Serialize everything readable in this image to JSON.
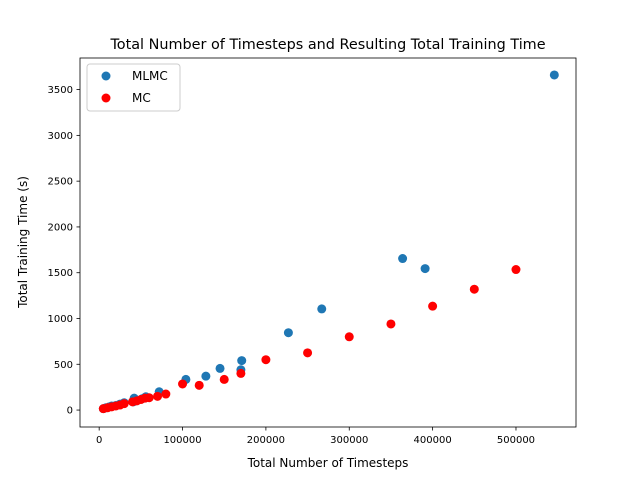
{
  "chart_data": {
    "type": "scatter",
    "title": "Total Number of Timesteps and Resulting Total Training Time",
    "xlabel": "Total Number of Timesteps",
    "ylabel": "Total Training Time (s)",
    "xlim": [
      -23000,
      572000
    ],
    "ylim": [
      -185,
      3845
    ],
    "x_ticks": [
      0,
      100000,
      200000,
      300000,
      400000,
      500000
    ],
    "x_tick_labels": [
      "0",
      "100000",
      "200000",
      "300000",
      "400000",
      "500000"
    ],
    "y_ticks": [
      0,
      500,
      1000,
      1500,
      2000,
      2500,
      3000,
      3500
    ],
    "y_tick_labels": [
      "0",
      "500",
      "1000",
      "1500",
      "2000",
      "2500",
      "3000",
      "3500"
    ],
    "grid": false,
    "legend_position": "top-left",
    "series": [
      {
        "name": "MLMC",
        "color": "#1f77b4",
        "points": [
          [
            5000,
            15
          ],
          [
            8000,
            25
          ],
          [
            12000,
            35
          ],
          [
            15000,
            45
          ],
          [
            20000,
            50
          ],
          [
            25000,
            65
          ],
          [
            30000,
            80
          ],
          [
            41000,
            90
          ],
          [
            42000,
            130
          ],
          [
            52000,
            125
          ],
          [
            56000,
            145
          ],
          [
            72000,
            200
          ],
          [
            104000,
            335
          ],
          [
            128000,
            370
          ],
          [
            145000,
            455
          ],
          [
            170000,
            440
          ],
          [
            171000,
            540
          ],
          [
            227000,
            845
          ],
          [
            267000,
            1105
          ],
          [
            364000,
            1655
          ],
          [
            391000,
            1545
          ],
          [
            546000,
            3660
          ]
        ]
      },
      {
        "name": "MC",
        "color": "#ff0000",
        "points": [
          [
            5000,
            15
          ],
          [
            10000,
            25
          ],
          [
            15000,
            35
          ],
          [
            20000,
            45
          ],
          [
            25000,
            55
          ],
          [
            30000,
            70
          ],
          [
            40000,
            90
          ],
          [
            45000,
            100
          ],
          [
            50000,
            115
          ],
          [
            55000,
            130
          ],
          [
            60000,
            135
          ],
          [
            70000,
            150
          ],
          [
            80000,
            175
          ],
          [
            100000,
            285
          ],
          [
            120000,
            270
          ],
          [
            150000,
            335
          ],
          [
            170000,
            400
          ],
          [
            200000,
            550
          ],
          [
            250000,
            625
          ],
          [
            300000,
            800
          ],
          [
            350000,
            940
          ],
          [
            400000,
            1135
          ],
          [
            450000,
            1320
          ],
          [
            500000,
            1535
          ]
        ]
      }
    ]
  }
}
